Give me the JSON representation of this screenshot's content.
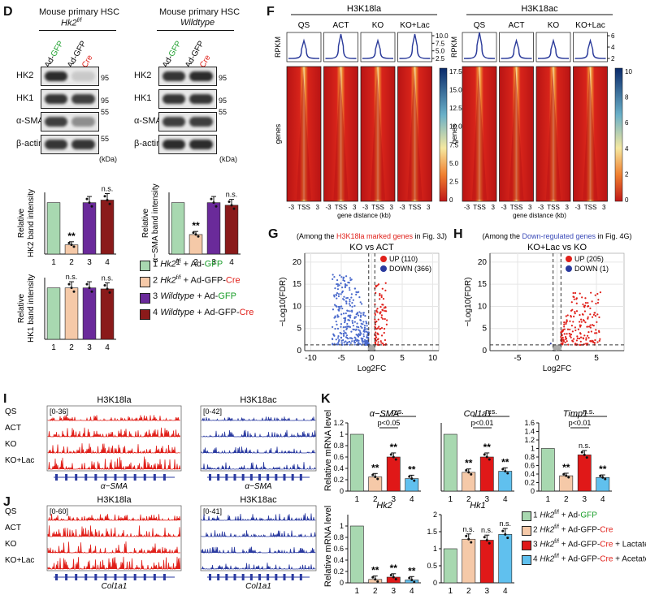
{
  "panels": {
    "D": "D",
    "F": "F",
    "G": "G",
    "H": "H",
    "I": "I",
    "J": "J",
    "K": "K"
  },
  "d": {
    "left_title": "Mouse primary HSC",
    "left_subtitle": "Hk2",
    "left_subtitle_sup": "f/f",
    "right_title": "Mouse primary HSC",
    "right_subtitle": "Wildtype",
    "lane_labels": [
      {
        "prefix": "Ad-",
        "suffix": "GFP"
      },
      {
        "prefix": "Ad-GFP",
        "suffix": "Cre"
      }
    ],
    "proteins": [
      "HK2",
      "HK1",
      "α-SMA",
      "β-actin"
    ],
    "markers": [
      "95",
      "95",
      "55",
      "55"
    ],
    "kda": "(kDa)",
    "bar_ylabels": [
      "Relative HK2 band intensity",
      "Relative α−SMA band intensity",
      "Relative HK1 band intensity"
    ],
    "legend": [
      {
        "num": "1",
        "geno": "Hk2",
        "sup": "f/f",
        "text": " + Ad-",
        "hl": "GFP",
        "color": "#a8d8b0"
      },
      {
        "num": "2",
        "geno": "Hk2",
        "sup": "f/f",
        "text": " + Ad-GFP-",
        "hl": "Cre",
        "color": "#f5c9a8"
      },
      {
        "num": "3",
        "geno": "Wildtype",
        "sup": "",
        "text": " + Ad-",
        "hl": "GFP",
        "color": "#6a2a9a"
      },
      {
        "num": "4",
        "geno": "Wildtype",
        "sup": "",
        "text": " + Ad-GFP-",
        "hl": "Cre",
        "color": "#8a1a1a"
      }
    ],
    "sig_ss": "**",
    "sig_ns": "n.s."
  },
  "f": {
    "left_title": "H3K18la",
    "right_title": "H3K18ac",
    "conditions": [
      "QS",
      "ACT",
      "KO",
      "KO+Lac"
    ],
    "rpkm": "RPKM",
    "genes": "genes",
    "left_rpkm_ticks": [
      "10.0",
      "7.5",
      "5.0",
      "2.5"
    ],
    "right_rpkm_ticks": [
      "6",
      "4",
      "2"
    ],
    "left_cbar": [
      "17.5",
      "15.0",
      "12.5",
      "10.0",
      "7.5",
      "5.0",
      "2.5",
      "0"
    ],
    "right_cbar": [
      "10",
      "8",
      "6",
      "4",
      "2",
      "0"
    ],
    "xticks": [
      "-3",
      "TSS",
      "3"
    ],
    "xlabel": "gene distance (kb)"
  },
  "g": {
    "note_pre": "(Among the ",
    "note_hl": "H3K18la marked genes",
    "note_post": " in Fig. 3J)",
    "title": "KO vs ACT",
    "up": "UP (110)",
    "down": "DOWN (366)",
    "yticks": [
      "20",
      "15",
      "10",
      "5",
      "0"
    ],
    "xticks": [
      "-10",
      "-5",
      "0",
      "5",
      "10"
    ],
    "ylabel": "−Log10(FDR)",
    "xlabel": "Log2FC"
  },
  "h": {
    "note_pre": "(Among the ",
    "note_hl": "Down-regulated genes",
    "note_post": " in Fig. 4G)",
    "title": "KO+Lac vs KO",
    "up": "UP (205)",
    "down": "DOWN (1)",
    "yticks": [
      "20",
      "15",
      "10",
      "5",
      "0"
    ],
    "xticks": [
      "-5",
      "0",
      "5"
    ],
    "ylabel": "−Log10(FDR)",
    "xlabel": "Log2FC"
  },
  "i": {
    "left_title": "H3K18la",
    "right_title": "H3K18ac",
    "left_range": "[0-36]",
    "right_range": "[0-42]",
    "rows": [
      "QS",
      "ACT",
      "KO",
      "KO+Lac"
    ],
    "gene": "α−SMA"
  },
  "j": {
    "left_title": "H3K18la",
    "right_title": "H3K18ac",
    "left_range": "[0-60]",
    "right_range": "[0-41]",
    "rows": [
      "QS",
      "ACT",
      "KO",
      "KO+Lac"
    ],
    "gene": "Col1a1"
  },
  "k": {
    "ylabel": "Relative mRNA level",
    "titles": [
      "α−SMA",
      "Col1a1",
      "Timp1",
      "Hk2",
      "Hk1"
    ],
    "pvals": [
      "p<0.05",
      "p<0.01",
      "p<0.01"
    ],
    "ns": "n.s.",
    "ss": "**",
    "legend": [
      {
        "num": "1",
        "text": " + Ad-",
        "hl": "GFP",
        "tail": ""
      },
      {
        "num": "2",
        "text": " + Ad-GFP-",
        "hl": "Cre",
        "tail": ""
      },
      {
        "num": "3",
        "text": " + Ad-GFP-",
        "hl": "Cre",
        "tail": " + Lactate"
      },
      {
        "num": "4",
        "text": " + Ad-GFP-",
        "hl": "Cre",
        "tail": " + Acetate"
      }
    ],
    "geno": "Hk2",
    "sup": "f/f"
  },
  "chart_data": [
    {
      "type": "bar",
      "title": "HK2",
      "categories": [
        "1",
        "2",
        "3",
        "4"
      ],
      "values": [
        1.0,
        0.18,
        1.0,
        1.05
      ],
      "ylabel": "Relative HK2 band intensity",
      "ylim": [
        0,
        1.2
      ]
    },
    {
      "type": "bar",
      "title": "α-SMA",
      "categories": [
        "1",
        "2",
        "3",
        "4"
      ],
      "values": [
        1.0,
        0.38,
        1.0,
        0.95
      ],
      "ylabel": "Relative α−SMA band intensity",
      "ylim": [
        0,
        1.2
      ]
    },
    {
      "type": "bar",
      "title": "HK1",
      "categories": [
        "1",
        "2",
        "3",
        "4"
      ],
      "values": [
        1.0,
        1.0,
        1.0,
        0.98
      ],
      "ylabel": "Relative HK1 band intensity",
      "ylim": [
        0,
        1.2
      ]
    },
    {
      "type": "bar",
      "title": "α−SMA mRNA",
      "categories": [
        "1",
        "2",
        "3",
        "4"
      ],
      "values": [
        1.0,
        0.25,
        0.6,
        0.22
      ],
      "ylim": [
        0,
        1.2
      ],
      "yticks": [
        "0",
        "0.2",
        "0.4",
        "0.6",
        "0.8",
        "1",
        "1.2"
      ]
    },
    {
      "type": "bar",
      "title": "Col1a1 mRNA",
      "categories": [
        "1",
        "2",
        "3",
        "4"
      ],
      "values": [
        1.0,
        0.33,
        0.6,
        0.35
      ],
      "ylim": [
        0,
        1.2
      ]
    },
    {
      "type": "bar",
      "title": "Timp1 mRNA",
      "categories": [
        "1",
        "2",
        "3",
        "4"
      ],
      "values": [
        1.0,
        0.36,
        0.85,
        0.32
      ],
      "ylim": [
        0,
        1.6
      ],
      "yticks": [
        "0",
        "0.2",
        "0.4",
        "0.6",
        "0.8",
        "1",
        "1.2",
        "1.4",
        "1.6"
      ]
    },
    {
      "type": "bar",
      "title": "Hk2 mRNA",
      "categories": [
        "1",
        "2",
        "3",
        "4"
      ],
      "values": [
        1.0,
        0.06,
        0.1,
        0.05
      ],
      "ylim": [
        0,
        1.2
      ],
      "yticks": [
        "0",
        "0.2",
        "0.4",
        "0.6",
        "0.8",
        "1"
      ]
    },
    {
      "type": "bar",
      "title": "Hk1 mRNA",
      "categories": [
        "1",
        "2",
        "3",
        "4"
      ],
      "values": [
        1.0,
        1.28,
        1.25,
        1.42
      ],
      "ylim": [
        0,
        2.0
      ],
      "yticks": [
        "0",
        "0.5",
        "1",
        "1.5",
        "2"
      ]
    }
  ]
}
